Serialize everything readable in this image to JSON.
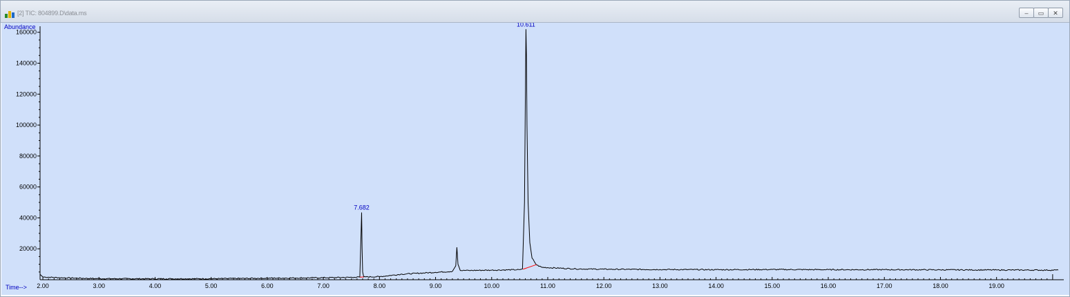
{
  "window": {
    "title": "[2] TIC: 804899.D\\data.ms",
    "buttons": {
      "minimize": "–",
      "restore": "▭",
      "close": "✕"
    }
  },
  "chart_data": {
    "type": "line",
    "ylabel": "Abundance",
    "xlabel": "Time-->",
    "xlim": [
      1.95,
      20.1
    ],
    "ylim": [
      0,
      163000
    ],
    "xticks": [
      "2.00",
      "3.00",
      "4.00",
      "5.00",
      "6.00",
      "7.00",
      "8.00",
      "9.00",
      "10.00",
      "11.00",
      "12.00",
      "13.00",
      "14.00",
      "15.00",
      "16.00",
      "17.00",
      "18.00",
      "19.00"
    ],
    "yticks": [
      "20000",
      "40000",
      "60000",
      "80000",
      "100000",
      "120000",
      "140000",
      "160000"
    ],
    "peak_labels": [
      {
        "label": "7.682",
        "x": 7.682,
        "y": 43500
      },
      {
        "label": "10.611",
        "x": 10.611,
        "y": 162000
      }
    ],
    "series": [
      {
        "points": [
          [
            1.95,
            3500
          ],
          [
            2.0,
            1800
          ],
          [
            2.3,
            1300
          ],
          [
            3.0,
            700
          ],
          [
            4.0,
            600
          ],
          [
            5.0,
            650
          ],
          [
            6.0,
            1000
          ],
          [
            7.0,
            1300
          ],
          [
            7.55,
            1600
          ],
          [
            7.65,
            1700
          ],
          [
            7.672,
            30000
          ],
          [
            7.682,
            43500
          ],
          [
            7.69,
            20000
          ],
          [
            7.7,
            5000
          ],
          [
            7.72,
            1800
          ],
          [
            8.0,
            2000
          ],
          [
            8.4,
            3600
          ],
          [
            9.0,
            4800
          ],
          [
            9.3,
            5400
          ],
          [
            9.36,
            9000
          ],
          [
            9.38,
            21000
          ],
          [
            9.4,
            10000
          ],
          [
            9.44,
            6000
          ],
          [
            9.6,
            6000
          ],
          [
            10.0,
            6200
          ],
          [
            10.5,
            6500
          ],
          [
            10.55,
            7000
          ],
          [
            10.585,
            50000
          ],
          [
            10.6,
            115000
          ],
          [
            10.611,
            162000
          ],
          [
            10.62,
            145000
          ],
          [
            10.63,
            100000
          ],
          [
            10.65,
            50000
          ],
          [
            10.68,
            24000
          ],
          [
            10.72,
            14000
          ],
          [
            10.8,
            9500
          ],
          [
            10.9,
            8000
          ],
          [
            11.5,
            7000
          ],
          [
            12.0,
            6800
          ],
          [
            13.0,
            6600
          ],
          [
            14.0,
            6500
          ],
          [
            15.0,
            6600
          ],
          [
            16.0,
            6500
          ],
          [
            17.0,
            6500
          ],
          [
            18.0,
            6400
          ],
          [
            19.0,
            6300
          ],
          [
            20.1,
            6200
          ]
        ],
        "color": "#000000"
      }
    ],
    "baselines": [
      {
        "from": [
          7.65,
          1700
        ],
        "to": [
          7.72,
          1800
        ],
        "color": "#ff0000"
      },
      {
        "from": [
          10.56,
          6800
        ],
        "to": [
          10.8,
          9800
        ],
        "color": "#ff0000"
      }
    ],
    "grid": false,
    "legend": "none"
  }
}
